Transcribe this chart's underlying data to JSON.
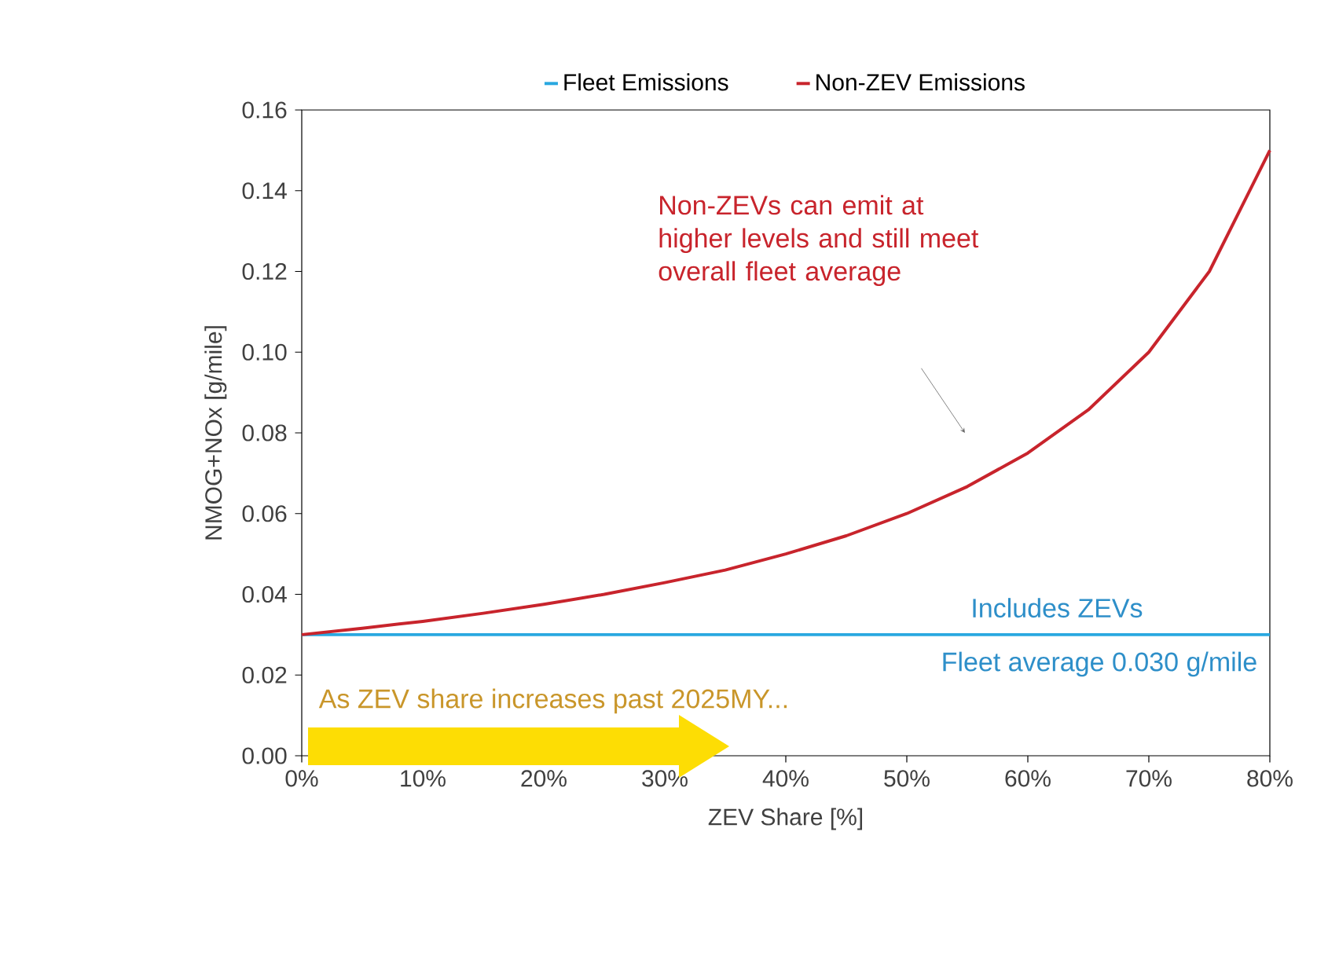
{
  "chart_data": {
    "type": "line",
    "xlabel": "ZEV Share [%]",
    "ylabel": "NMOG+NOx [g/mile]",
    "xlim": [
      0,
      80
    ],
    "ylim": [
      0,
      0.16
    ],
    "xticks": [
      {
        "value": 0,
        "label": "0%"
      },
      {
        "value": 10,
        "label": "10%"
      },
      {
        "value": 20,
        "label": "20%"
      },
      {
        "value": 30,
        "label": "30%"
      },
      {
        "value": 40,
        "label": "40%"
      },
      {
        "value": 50,
        "label": "50%"
      },
      {
        "value": 60,
        "label": "60%"
      },
      {
        "value": 70,
        "label": "70%"
      },
      {
        "value": 80,
        "label": "80%"
      }
    ],
    "yticks": [
      {
        "value": 0,
        "label": "0.00"
      },
      {
        "value": 0.02,
        "label": "0.02"
      },
      {
        "value": 0.04,
        "label": "0.04"
      },
      {
        "value": 0.06,
        "label": "0.06"
      },
      {
        "value": 0.08,
        "label": "0.08"
      },
      {
        "value": 0.1,
        "label": "0.10"
      },
      {
        "value": 0.12,
        "label": "0.12"
      },
      {
        "value": 0.14,
        "label": "0.14"
      },
      {
        "value": 0.16,
        "label": "0.16"
      }
    ],
    "series": [
      {
        "name": "Fleet Emissions",
        "color": "#29a8e0",
        "x": [
          0,
          80
        ],
        "values": [
          0.03,
          0.03
        ]
      },
      {
        "name": "Non-ZEV Emissions",
        "color": "#c8242c",
        "x": [
          0,
          5,
          10,
          15,
          20,
          25,
          30,
          35,
          40,
          45,
          50,
          55,
          60,
          65,
          70,
          75,
          80
        ],
        "values": [
          0.03,
          0.0316,
          0.0333,
          0.0353,
          0.0375,
          0.04,
          0.0429,
          0.046,
          0.05,
          0.0545,
          0.06,
          0.0667,
          0.075,
          0.0857,
          0.1,
          0.12,
          0.15
        ]
      }
    ],
    "annotations": [
      "Non-ZEVs can emit at higher levels and still meet overall fleet average",
      "Includes ZEVs",
      "Fleet average 0.030 g/mile",
      "As ZEV share increases past 2025MY..."
    ],
    "legend": "top",
    "marker": "none",
    "line_style": "solid",
    "grid": false
  }
}
